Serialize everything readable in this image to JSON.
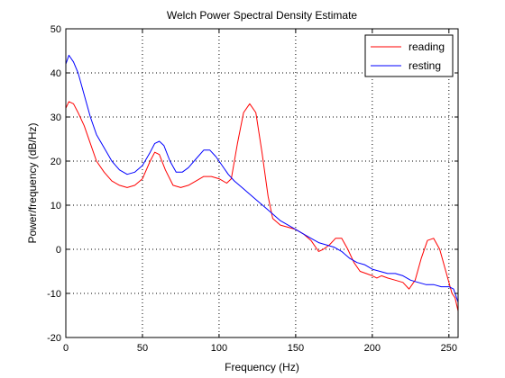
{
  "chart_data": {
    "type": "line",
    "title": "Welch Power Spectral Density Estimate",
    "xlabel": "Frequency (Hz)",
    "ylabel": "Power/frequency (dB/Hz)",
    "xlim": [
      0,
      256
    ],
    "ylim": [
      -20,
      50
    ],
    "xticks": [
      0,
      50,
      100,
      150,
      200,
      250
    ],
    "yticks": [
      -20,
      -10,
      0,
      10,
      20,
      30,
      40,
      50
    ],
    "grid": true,
    "legend_position": "top-right",
    "series": [
      {
        "name": "reading",
        "color": "#ff0000",
        "points": [
          [
            0,
            32
          ],
          [
            2,
            33.5
          ],
          [
            5,
            33
          ],
          [
            8,
            31
          ],
          [
            12,
            28
          ],
          [
            16,
            24
          ],
          [
            20,
            20
          ],
          [
            25,
            17.5
          ],
          [
            30,
            15.5
          ],
          [
            35,
            14.5
          ],
          [
            40,
            14
          ],
          [
            45,
            14.5
          ],
          [
            50,
            16
          ],
          [
            55,
            20
          ],
          [
            58,
            22
          ],
          [
            61,
            21.5
          ],
          [
            65,
            18
          ],
          [
            70,
            14.5
          ],
          [
            75,
            14
          ],
          [
            80,
            14.5
          ],
          [
            85,
            15.5
          ],
          [
            90,
            16.5
          ],
          [
            95,
            16.5
          ],
          [
            100,
            16
          ],
          [
            105,
            15
          ],
          [
            108,
            16
          ],
          [
            112,
            24
          ],
          [
            116,
            31
          ],
          [
            120,
            33
          ],
          [
            124,
            31
          ],
          [
            128,
            22
          ],
          [
            132,
            12
          ],
          [
            135,
            7
          ],
          [
            140,
            5.5
          ],
          [
            145,
            5
          ],
          [
            150,
            4.5
          ],
          [
            155,
            3.5
          ],
          [
            160,
            2
          ],
          [
            163,
            0.5
          ],
          [
            165,
            -0.5
          ],
          [
            168,
            0
          ],
          [
            172,
            1
          ],
          [
            176,
            2.5
          ],
          [
            180,
            2.5
          ],
          [
            184,
            0
          ],
          [
            188,
            -3
          ],
          [
            192,
            -5
          ],
          [
            196,
            -5.5
          ],
          [
            200,
            -6
          ],
          [
            203,
            -6.5
          ],
          [
            206,
            -6
          ],
          [
            210,
            -6.5
          ],
          [
            215,
            -7
          ],
          [
            220,
            -7.5
          ],
          [
            224,
            -9
          ],
          [
            228,
            -7
          ],
          [
            232,
            -2
          ],
          [
            236,
            2
          ],
          [
            240,
            2.5
          ],
          [
            244,
            0
          ],
          [
            248,
            -5
          ],
          [
            252,
            -10
          ],
          [
            254,
            -11
          ],
          [
            256,
            -14
          ]
        ]
      },
      {
        "name": "resting",
        "color": "#0000ff",
        "points": [
          [
            0,
            42
          ],
          [
            2,
            44
          ],
          [
            5,
            42.5
          ],
          [
            8,
            40
          ],
          [
            12,
            35
          ],
          [
            16,
            30
          ],
          [
            20,
            26
          ],
          [
            25,
            23
          ],
          [
            30,
            20
          ],
          [
            35,
            18
          ],
          [
            40,
            17
          ],
          [
            45,
            17.5
          ],
          [
            50,
            19
          ],
          [
            55,
            22
          ],
          [
            58,
            24
          ],
          [
            61,
            24.5
          ],
          [
            64,
            23.5
          ],
          [
            68,
            20
          ],
          [
            72,
            17.5
          ],
          [
            76,
            17.5
          ],
          [
            80,
            18.5
          ],
          [
            85,
            20.5
          ],
          [
            90,
            22.5
          ],
          [
            94,
            22.5
          ],
          [
            98,
            21
          ],
          [
            102,
            19
          ],
          [
            106,
            17
          ],
          [
            110,
            15.5
          ],
          [
            115,
            14
          ],
          [
            120,
            12.5
          ],
          [
            125,
            11
          ],
          [
            130,
            9.5
          ],
          [
            135,
            8
          ],
          [
            140,
            6.5
          ],
          [
            145,
            5.5
          ],
          [
            150,
            4.5
          ],
          [
            155,
            3.5
          ],
          [
            160,
            2.5
          ],
          [
            165,
            1.5
          ],
          [
            170,
            1
          ],
          [
            175,
            0.5
          ],
          [
            180,
            -0.5
          ],
          [
            185,
            -2
          ],
          [
            190,
            -3
          ],
          [
            195,
            -3.5
          ],
          [
            200,
            -4.5
          ],
          [
            205,
            -5
          ],
          [
            210,
            -5.5
          ],
          [
            215,
            -5.5
          ],
          [
            220,
            -6
          ],
          [
            225,
            -7
          ],
          [
            230,
            -7.5
          ],
          [
            235,
            -8
          ],
          [
            240,
            -8
          ],
          [
            245,
            -8.5
          ],
          [
            250,
            -8.5
          ],
          [
            253,
            -9
          ],
          [
            256,
            -12
          ]
        ]
      }
    ]
  }
}
